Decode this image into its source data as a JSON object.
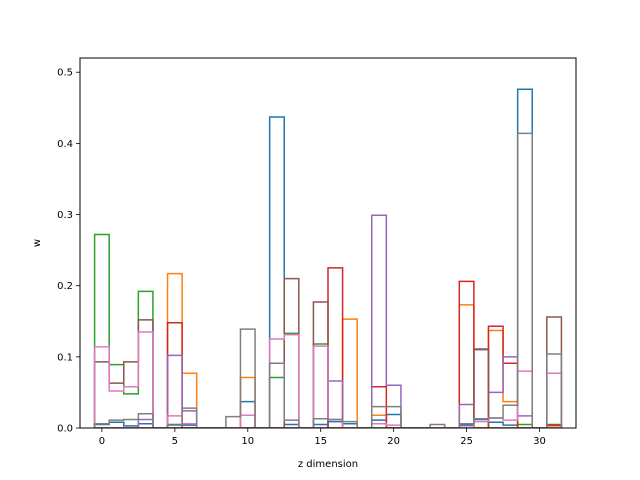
{
  "chart_data": {
    "type": "bar",
    "style": "step histogram (unfilled outlines), overlaid series",
    "title": "",
    "xlabel": "z dimension",
    "ylabel": "w",
    "xlim": [
      -1.5,
      32.5
    ],
    "ylim": [
      0,
      0.52
    ],
    "xticks": [
      0,
      5,
      10,
      15,
      20,
      25,
      30
    ],
    "yticks": [
      0.0,
      0.1,
      0.2,
      0.3,
      0.4,
      0.5
    ],
    "xtick_labels": [
      "0",
      "5",
      "10",
      "15",
      "20",
      "25",
      "30"
    ],
    "ytick_labels": [
      "0.0",
      "0.1",
      "0.2",
      "0.3",
      "0.4",
      "0.5"
    ],
    "grid": false,
    "legend": "none",
    "bin_width": 1,
    "x": [
      0,
      1,
      2,
      3,
      4,
      5,
      6,
      7,
      8,
      9,
      10,
      11,
      12,
      13,
      14,
      15,
      16,
      17,
      18,
      19,
      20,
      21,
      22,
      23,
      24,
      25,
      26,
      27,
      28,
      29,
      30,
      31
    ],
    "series": [
      {
        "color": "#1f77b4",
        "values": [
          0.005,
          0.008,
          0.003,
          0.006,
          0,
          0.005,
          0.004,
          0,
          0,
          0,
          0.037,
          0,
          0.437,
          0.005,
          0,
          0.005,
          0.009,
          0.006,
          0,
          0.011,
          0.019,
          0,
          0,
          0,
          0,
          0.004,
          0.012,
          0.008,
          0.004,
          0.476,
          0,
          0
        ]
      },
      {
        "color": "#ff7f0e",
        "values": [
          0,
          0,
          0,
          0,
          0,
          0.217,
          0.077,
          0,
          0,
          0,
          0.071,
          0,
          0,
          0,
          0,
          0,
          0,
          0.153,
          0,
          0.018,
          0,
          0,
          0,
          0,
          0,
          0.173,
          0,
          0.137,
          0.037,
          0,
          0,
          0.003
        ]
      },
      {
        "color": "#2ca02c",
        "values": [
          0.272,
          0.089,
          0.048,
          0.192,
          0,
          0,
          0,
          0,
          0,
          0,
          0,
          0,
          0.071,
          0.133,
          0,
          0.118,
          0,
          0,
          0,
          0,
          0,
          0,
          0,
          0,
          0,
          0,
          0,
          0,
          0,
          0.005,
          0,
          0.005
        ]
      },
      {
        "color": "#d62728",
        "values": [
          0,
          0,
          0,
          0,
          0,
          0.148,
          0,
          0,
          0,
          0,
          0,
          0,
          0,
          0,
          0,
          0,
          0.225,
          0,
          0,
          0.058,
          0,
          0,
          0,
          0,
          0,
          0.206,
          0,
          0.143,
          0.091,
          0,
          0,
          0.004
        ]
      },
      {
        "color": "#9467bd",
        "values": [
          0,
          0,
          0,
          0.012,
          0,
          0.102,
          0.024,
          0,
          0,
          0,
          0,
          0,
          0,
          0,
          0,
          0,
          0.066,
          0,
          0,
          0.299,
          0.06,
          0,
          0,
          0,
          0,
          0.033,
          0.11,
          0.05,
          0.1,
          0.017,
          0,
          0
        ]
      },
      {
        "color": "#8c564b",
        "values": [
          0.093,
          0.063,
          0.093,
          0.152,
          0,
          0,
          0,
          0,
          0,
          0,
          0,
          0,
          0,
          0.21,
          0,
          0.177,
          0,
          0,
          0,
          0,
          0,
          0,
          0,
          0,
          0,
          0,
          0.111,
          0,
          0,
          0,
          0,
          0.156
        ]
      },
      {
        "color": "#e377c2",
        "values": [
          0.114,
          0.052,
          0.058,
          0.135,
          0,
          0.017,
          0.006,
          0,
          0,
          0,
          0.018,
          0,
          0.125,
          0.131,
          0,
          0.115,
          0.012,
          0,
          0,
          0.006,
          0.004,
          0,
          0,
          0,
          0,
          0.001,
          0.009,
          0.014,
          0.011,
          0.08,
          0,
          0.077
        ]
      },
      {
        "color": "#7f7f7f",
        "values": [
          0.006,
          0.011,
          0.012,
          0.02,
          0,
          0.004,
          0.028,
          0,
          0,
          0.016,
          0.139,
          0,
          0.091,
          0.011,
          0,
          0.013,
          0.012,
          0.009,
          0,
          0.03,
          0.03,
          0,
          0,
          0.005,
          0,
          0.006,
          0.013,
          0.014,
          0.032,
          0.414,
          0,
          0.104
        ]
      }
    ]
  }
}
